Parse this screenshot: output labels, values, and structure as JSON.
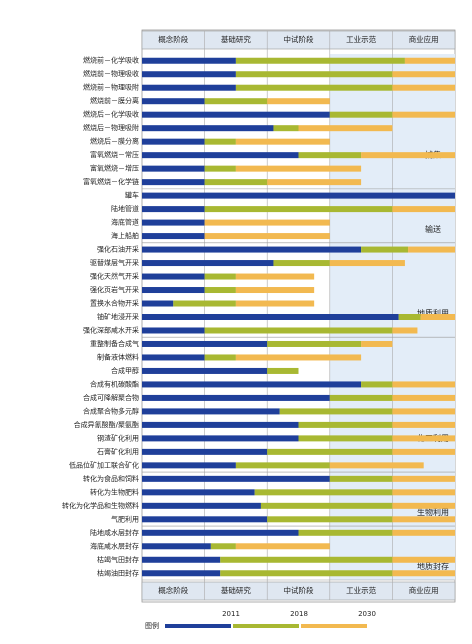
{
  "chart_data": {
    "type": "stacked_barh",
    "stages": [
      "概念阶段",
      "基础研究",
      "中试阶段",
      "工业示范",
      "商业应用"
    ],
    "xlim": [
      0,
      5
    ],
    "categories": [
      "燃烧前－化学吸收",
      "燃烧前－物理吸收",
      "燃烧前－物理吸附",
      "燃烧前－膜分离",
      "燃烧后－化学吸收",
      "燃烧后－物理吸附",
      "燃烧后－膜分离",
      "富氧燃烧－常压",
      "富氧燃烧－增压",
      "富氧燃烧－化学链",
      "罐车",
      "陆地管道",
      "海底管道",
      "海上船舶",
      "强化石油开采",
      "驱替煤层气开采",
      "强化天然气开采",
      "强化页岩气开采",
      "置换水合物开采",
      "铀矿地浸开采",
      "强化深部咸水开采",
      "重整制备合成气",
      "制备液体燃料",
      "合成甲醇",
      "合成有机碳酸酯",
      "合成可降解聚合物",
      "合成聚合物多元醇",
      "合成异氰酸酯/聚氨酯",
      "钢渣矿化利用",
      "石膏矿化利用",
      "低品位矿加工联合矿化",
      "转化为食品和饲料",
      "转化为生物肥料",
      "转化为化学品和生物燃料",
      "气肥利用",
      "陆地咸水层封存",
      "海底咸水层封存",
      "枯竭气田封存",
      "枯竭油田封存"
    ],
    "groups": [
      {
        "name": "捕集",
        "count": 10
      },
      {
        "name": "输送",
        "count": 4
      },
      {
        "name": "地质利用",
        "count": 7
      },
      {
        "name": "化工利用",
        "count": 10
      },
      {
        "name": "生物利用",
        "count": 4
      },
      {
        "name": "地质封存",
        "count": 4
      }
    ],
    "legend_title": "图例",
    "series": [
      {
        "name": "2011",
        "color": "#1f3f9a",
        "values": [
          1.5,
          1.5,
          1.5,
          1,
          3,
          2.1,
          1,
          2.5,
          1,
          1,
          5,
          1,
          1,
          1,
          3.5,
          2.1,
          1,
          1,
          0.5,
          4.1,
          1,
          2,
          1,
          2,
          3.5,
          3,
          2.2,
          2.5,
          2.5,
          2,
          1.5,
          3,
          1.8,
          1.9,
          2,
          2.5,
          1.1,
          1.25,
          1.25
        ]
      },
      {
        "name": "2018",
        "color": "#a8b832",
        "values": [
          2.7,
          2.5,
          2.5,
          1,
          1,
          0.4,
          0.5,
          1,
          0.5,
          1,
          0,
          3,
          0,
          0,
          0.75,
          0.9,
          0.5,
          0.5,
          1,
          0.35,
          3,
          1.5,
          0.5,
          0.5,
          0.5,
          1,
          1.8,
          1.5,
          1.5,
          2,
          1.5,
          1,
          2.2,
          2.1,
          2,
          1.5,
          0.4,
          2.75,
          2.75
        ]
      },
      {
        "name": "2030",
        "color": "#f2b950",
        "values": [
          0.8,
          1,
          1,
          1,
          1,
          1.5,
          1.5,
          1.5,
          2,
          1.5,
          0,
          1,
          2,
          2,
          0.75,
          1.2,
          1.25,
          1.25,
          1.25,
          0.55,
          0.4,
          0.5,
          2,
          0,
          1,
          1,
          1,
          1,
          1,
          1,
          1.5,
          1,
          1,
          1,
          1,
          1,
          1.5,
          1,
          1
        ]
      }
    ]
  }
}
